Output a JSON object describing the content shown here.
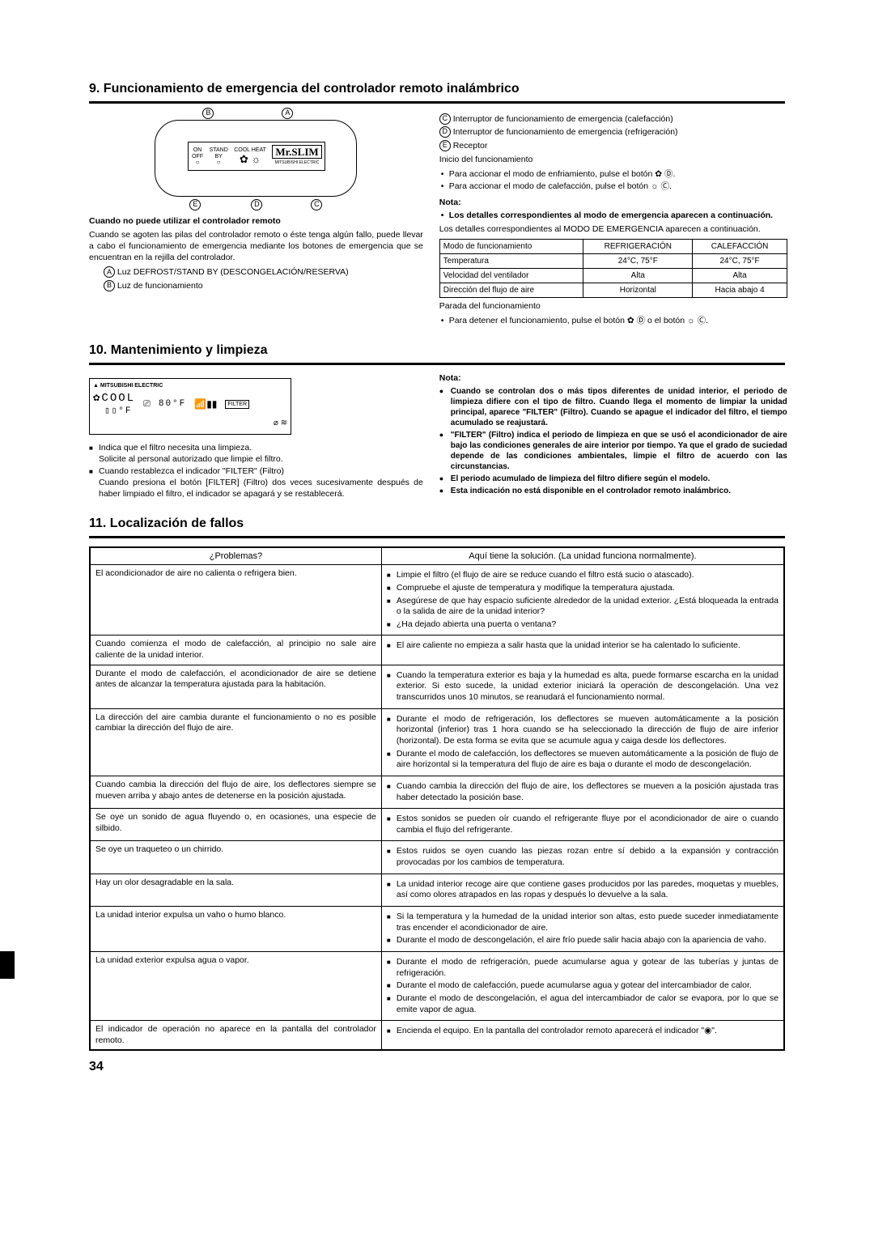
{
  "sections": {
    "s9": {
      "title": "9. Funcionamiento de emergencia del controlador remoto inalámbrico"
    },
    "s10": {
      "title": "10. Mantenimiento y limpieza"
    },
    "s11": {
      "title": "11. Localización de fallos"
    }
  },
  "diagram9": {
    "labels": {
      "A": "A",
      "B": "B",
      "C": "C",
      "D": "D",
      "E": "E"
    },
    "on": "ON",
    "off": "OFF",
    "stand": "STAND",
    "by": "BY",
    "cool": "COOL",
    "heat": "HEAT",
    "brand": "Mr.SLIM",
    "mitsu": "MITSUBISHI ELECTRIC"
  },
  "s9_left": {
    "heading": "Cuando no puede utilizar el controlador remoto",
    "para": "Cuando se agoten las pilas del controlador remoto o éste tenga algún fallo, puede llevar a cabo el funcionamiento de emergencia mediante los botones de emergencia que se encuentran en la rejilla del controlador.",
    "legendA": "Luz DEFROST/STAND BY (DESCONGELACIÓN/RESERVA)",
    "legendB": "Luz de funcionamiento"
  },
  "s9_right": {
    "legendC": "Interruptor de funcionamiento de emergencia (calefacción)",
    "legendD": "Interruptor de funcionamiento de emergencia (refrigeración)",
    "legendE": "Receptor",
    "inicio": "Inicio del funcionamiento",
    "b1": "Para accionar el modo de enfriamiento, pulse el botón ✿ Ⓓ.",
    "b2": "Para accionar el modo de calefacción, pulse el botón ☼ Ⓒ.",
    "nota": "Nota:",
    "notaBold": "Los detalles correspondientes al modo de emergencia aparecen a continuación.",
    "para2": "Los detalles correspondientes al MODO DE EMERGENCIA aparecen a continuación.",
    "table": {
      "r1": [
        "Modo de funcionamiento",
        "REFRIGERACIÓN",
        "CALEFACCIÓN"
      ],
      "r2": [
        "Temperatura",
        "24°C, 75°F",
        "24°C, 75°F"
      ],
      "r3": [
        "Velocidad del ventilador",
        "Alta",
        "Alta"
      ],
      "r4": [
        "Dirección del flujo de aire",
        "Horizontal",
        "Hacia abajo 4"
      ]
    },
    "parada": "Parada del funcionamiento",
    "b3": "Para detener el funcionamiento, pulse el botón ✿ Ⓓ o el botón ☼ Ⓒ."
  },
  "s10_left": {
    "mitsu": "MITSUBISHI ELECTRIC",
    "lcd1": "✿COOL",
    "lcd2": "▯▯°F",
    "lcd3": "80°F",
    "lcd4": "FILTER",
    "l1": "Indica que el filtro necesita una limpieza.",
    "l1b": "Solicite al personal autorizado que limpie el filtro.",
    "l2": "Cuando restablezca el indicador \"FILTER\" (Filtro)",
    "l2b": "Cuando presiona el botón [FILTER] (Filtro) dos veces sucesivamente después de haber limpiado el filtro, el indicador se apagará y se restablecerá."
  },
  "s10_right": {
    "nota": "Nota:",
    "c1": "Cuando se controlan dos o más tipos diferentes de unidad interior, el periodo de limpieza difiere con el tipo de filtro. Cuando llega el momento de limpiar la unidad principal, aparece \"FILTER\" (Filtro). Cuando se apague el indicador del filtro, el tiempo acumulado se reajustará.",
    "c2": "\"FILTER\" (Filtro) indica el periodo de limpieza en que se usó el acondicionador de aire bajo las condiciones generales de aire interior por tiempo. Ya que el grado de suciedad depende de las condiciones ambientales, limpie el filtro de acuerdo con las circunstancias.",
    "c3": "El periodo acumulado de limpieza del filtro difiere según el modelo.",
    "c4": "Esta indicación no está disponible en el controlador remoto inalámbrico."
  },
  "trouble": {
    "head1": "¿Problemas?",
    "head2": "Aquí tiene la solución. (La unidad funciona normalmente).",
    "rows": [
      {
        "p": "El acondicionador de aire no calienta o refrigera bien.",
        "s": [
          "Limpie el filtro (el flujo de aire se reduce cuando el filtro está sucio o atascado).",
          "Compruebe el ajuste de temperatura y modifique la temperatura ajustada.",
          "Asegúrese de que hay espacio suficiente alrededor de la unidad exterior. ¿Está bloqueada la entrada o la salida de aire de la unidad interior?",
          "¿Ha dejado abierta una puerta o ventana?"
        ]
      },
      {
        "p": "Cuando comienza el modo de calefacción, al principio no sale aire caliente de la unidad interior.",
        "s": [
          "El aire caliente no empieza a salir hasta que la unidad interior se ha calentado lo suficiente."
        ]
      },
      {
        "p": "Durante el modo de calefacción, el acondicionador de aire se detiene antes de alcanzar la temperatura ajustada para la habitación.",
        "s": [
          "Cuando la temperatura exterior es baja y la humedad es alta, puede formarse escarcha en la unidad exterior. Si esto sucede, la unidad exterior iniciará la operación de descongelación. Una vez transcurridos unos 10 minutos, se reanudará el funcionamiento normal."
        ]
      },
      {
        "p": "La dirección del aire cambia durante el funcionamiento o no es posible cambiar la dirección del flujo de aire.",
        "s": [
          "Durante el modo de refrigeración, los deflectores se mueven automáticamente a la posición horizontal (inferior) tras 1 hora cuando se ha seleccionado la dirección de flujo de aire inferior (horizontal). De esta forma se evita que se acumule agua y caiga desde los deflectores.",
          "Durante el modo de calefacción, los deflectores se mueven automáticamente a la posición de flujo de aire horizontal si la temperatura del flujo de aire es baja o durante el modo de descongelación."
        ]
      },
      {
        "p": "Cuando cambia la dirección del flujo de aire, los deflectores siempre se mueven arriba y abajo antes de detenerse en la posición ajustada.",
        "s": [
          "Cuando cambia la dirección del flujo de aire, los deflectores se mueven a la posición ajustada tras haber detectado la posición base."
        ]
      },
      {
        "p": "Se oye un sonido de agua fluyendo o, en ocasiones, una especie de silbido.",
        "s": [
          "Estos sonidos se pueden oír cuando el refrigerante fluye por el acondicionador de aire o cuando cambia el flujo del refrigerante."
        ]
      },
      {
        "p": "Se oye un traqueteo o un chirrido.",
        "s": [
          "Estos ruidos se oyen cuando las piezas rozan entre sí debido a la expansión y contracción provocadas por los cambios de temperatura."
        ]
      },
      {
        "p": "Hay un olor desagradable en la sala.",
        "s": [
          "La unidad interior recoge aire que contiene gases producidos por las paredes, moquetas y muebles, así como olores atrapados en las ropas y después lo devuelve a la sala."
        ]
      },
      {
        "p": "La unidad interior expulsa un vaho o humo blanco.",
        "s": [
          "Si la temperatura y la humedad de la unidad interior son altas, esto puede suceder inmediatamente tras encender el acondicionador de aire.",
          "Durante el modo de descongelación, el aire frío puede salir hacia abajo con la apariencia de vaho."
        ]
      },
      {
        "p": "La unidad exterior expulsa agua o vapor.",
        "s": [
          "Durante el modo de refrigeración, puede acumularse agua y gotear de las tuberías y juntas de refrigeración.",
          "Durante el modo de calefacción, puede acumularse agua y gotear del intercambiador de calor.",
          "Durante el modo de descongelación, el agua del intercambiador de calor se evapora, por lo que se emite vapor de agua."
        ]
      },
      {
        "p": "El indicador de operación no aparece en la pantalla del controlador remoto.",
        "s": [
          "Encienda el equipo. En la pantalla del controlador remoto aparecerá el indicador \"◉\"."
        ]
      }
    ]
  },
  "pageNum": "34"
}
